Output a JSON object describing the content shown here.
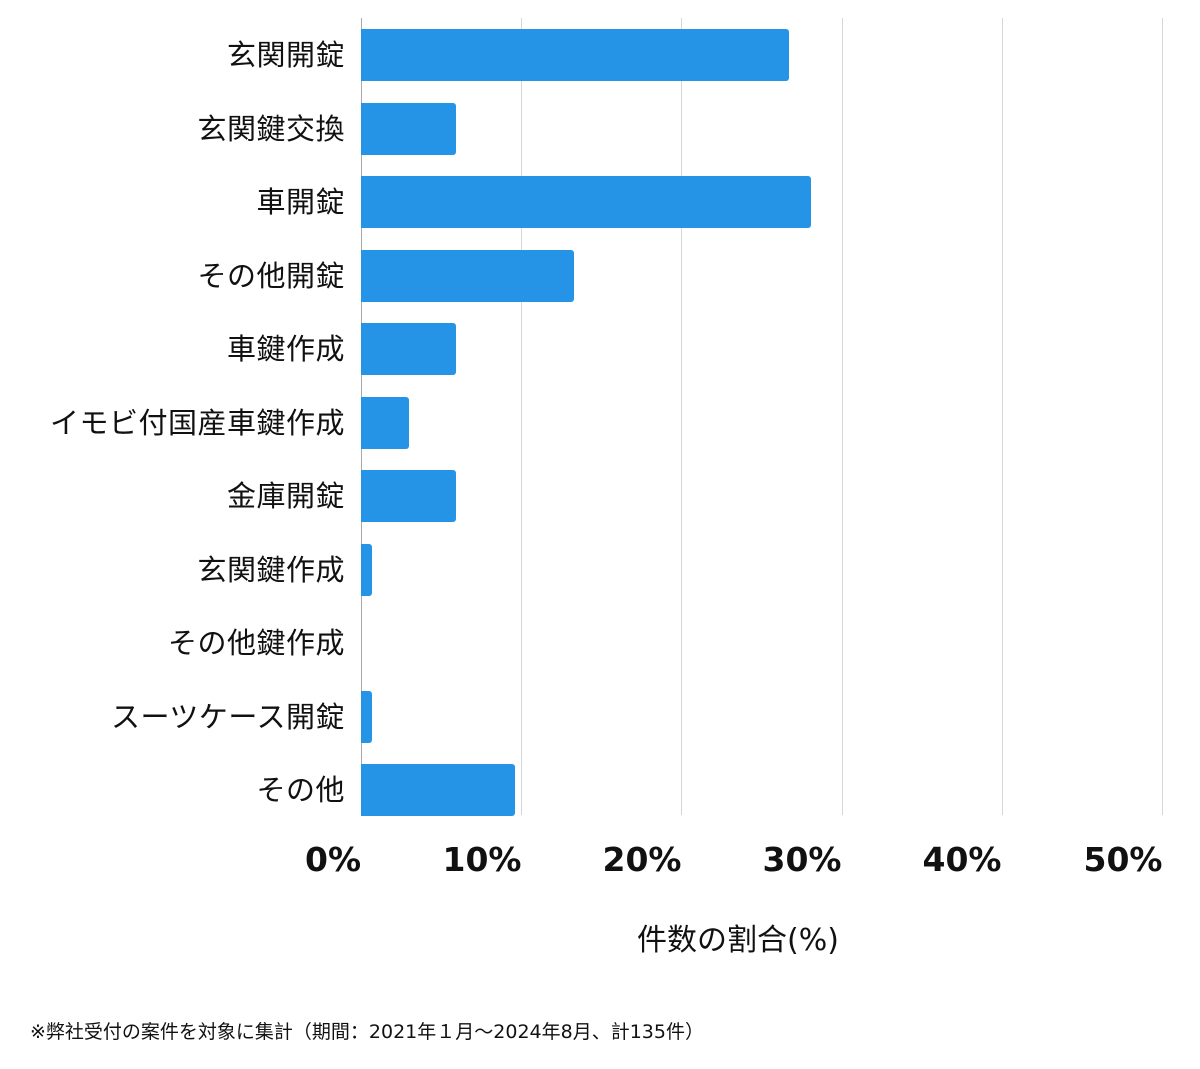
{
  "chart_data": {
    "type": "bar",
    "orientation": "horizontal",
    "title": "",
    "xlabel": "件数の割合(%)",
    "ylabel": "",
    "xlim": [
      0,
      50
    ],
    "x_ticks": [
      "0%",
      "10%",
      "20%",
      "30%",
      "40%",
      "50%"
    ],
    "grid": true,
    "legend": null,
    "bar_color": "#2593e6",
    "categories": [
      "玄関開錠",
      "玄関鍵交換",
      "車開錠",
      "その他開錠",
      "車鍵作成",
      "イモビ付国産車鍵作成",
      "金庫開錠",
      "玄関鍵作成",
      "その他鍵作成",
      "スーツケース開錠",
      "その他"
    ],
    "values": [
      26.7,
      5.9,
      28.1,
      13.3,
      5.9,
      3.0,
      5.9,
      0.7,
      0.0,
      0.7,
      9.6
    ],
    "footnote": "※弊社受付の案件を対象に集計（期間：2021年１月～2024年8月、計135件）"
  },
  "axis": {
    "ticks": [
      {
        "label": "0%",
        "value": 0
      },
      {
        "label": "10%",
        "value": 10
      },
      {
        "label": "20%",
        "value": 20
      },
      {
        "label": "30%",
        "value": 30
      },
      {
        "label": "40%",
        "value": 40
      },
      {
        "label": "50%",
        "value": 50
      }
    ],
    "title": "件数の割合(%)"
  },
  "bars": [
    {
      "label": "玄関開錠",
      "value": 26.7
    },
    {
      "label": "玄関鍵交換",
      "value": 5.9
    },
    {
      "label": "車開錠",
      "value": 28.1
    },
    {
      "label": "その他開錠",
      "value": 13.3
    },
    {
      "label": "車鍵作成",
      "value": 5.9
    },
    {
      "label": "イモビ付国産車鍵作成",
      "value": 3.0
    },
    {
      "label": "金庫開錠",
      "value": 5.9
    },
    {
      "label": "玄関鍵作成",
      "value": 0.7
    },
    {
      "label": "その他鍵作成",
      "value": 0.0
    },
    {
      "label": "スーツケース開錠",
      "value": 0.7
    },
    {
      "label": "その他",
      "value": 9.6
    }
  ],
  "footnote": "※弊社受付の案件を対象に集計（期間：2021年１月～2024年8月、計135件）",
  "colors": {
    "bar": "#2593e6",
    "grid": "#d6d6d6",
    "axis": "#a8a8a8",
    "text": "#111111"
  }
}
